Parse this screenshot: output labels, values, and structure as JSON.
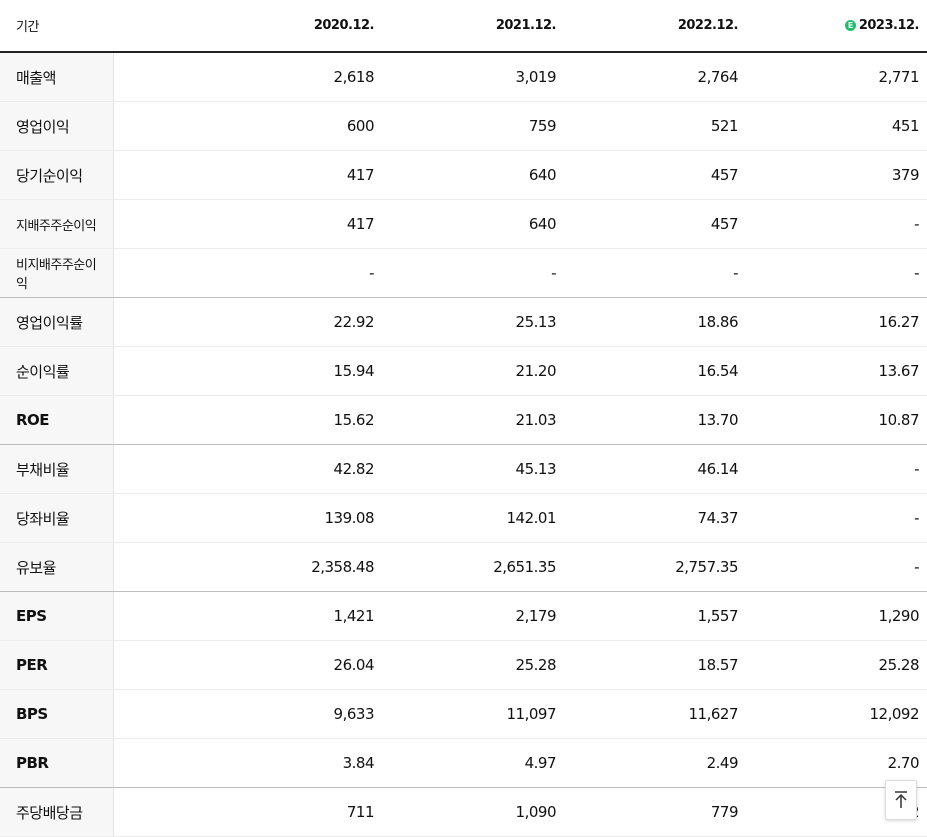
{
  "table": {
    "header": {
      "label": "기간",
      "periods": [
        "2020.12.",
        "2021.12.",
        "2022.12.",
        "2023.12."
      ],
      "estimate_badge": "E"
    },
    "rows": [
      {
        "label": "매출액",
        "values": [
          "2,618",
          "3,019",
          "2,764",
          "2,771"
        ]
      },
      {
        "label": "영업이익",
        "values": [
          "600",
          "759",
          "521",
          "451"
        ]
      },
      {
        "label": "당기순이익",
        "values": [
          "417",
          "640",
          "457",
          "379"
        ]
      },
      {
        "label": "지배주주순이익",
        "values": [
          "417",
          "640",
          "457",
          "-"
        ]
      },
      {
        "label": "비지배주주순이익",
        "values": [
          "-",
          "-",
          "-",
          "-"
        ]
      },
      {
        "label": "영업이익률",
        "values": [
          "22.92",
          "25.13",
          "18.86",
          "16.27"
        ]
      },
      {
        "label": "순이익률",
        "values": [
          "15.94",
          "21.20",
          "16.54",
          "13.67"
        ]
      },
      {
        "label": "ROE",
        "values": [
          "15.62",
          "21.03",
          "13.70",
          "10.87"
        ]
      },
      {
        "label": "부채비율",
        "values": [
          "42.82",
          "45.13",
          "46.14",
          "-"
        ]
      },
      {
        "label": "당좌비율",
        "values": [
          "139.08",
          "142.01",
          "74.37",
          "-"
        ]
      },
      {
        "label": "유보율",
        "values": [
          "2,358.48",
          "2,651.35",
          "2,757.35",
          "-"
        ]
      },
      {
        "label": "EPS",
        "values": [
          "1,421",
          "2,179",
          "1,557",
          "1,290"
        ]
      },
      {
        "label": "PER",
        "values": [
          "26.04",
          "25.28",
          "18.57",
          "25.28"
        ]
      },
      {
        "label": "BPS",
        "values": [
          "9,633",
          "11,097",
          "11,627",
          "12,092"
        ]
      },
      {
        "label": "PBR",
        "values": [
          "3.84",
          "4.97",
          "2.49",
          "2.70"
        ]
      },
      {
        "label": "주당배당금",
        "values": [
          "711",
          "1,090",
          "779",
          "2"
        ]
      }
    ]
  },
  "scroll_top_icon": "arrow-up-to-top-icon"
}
